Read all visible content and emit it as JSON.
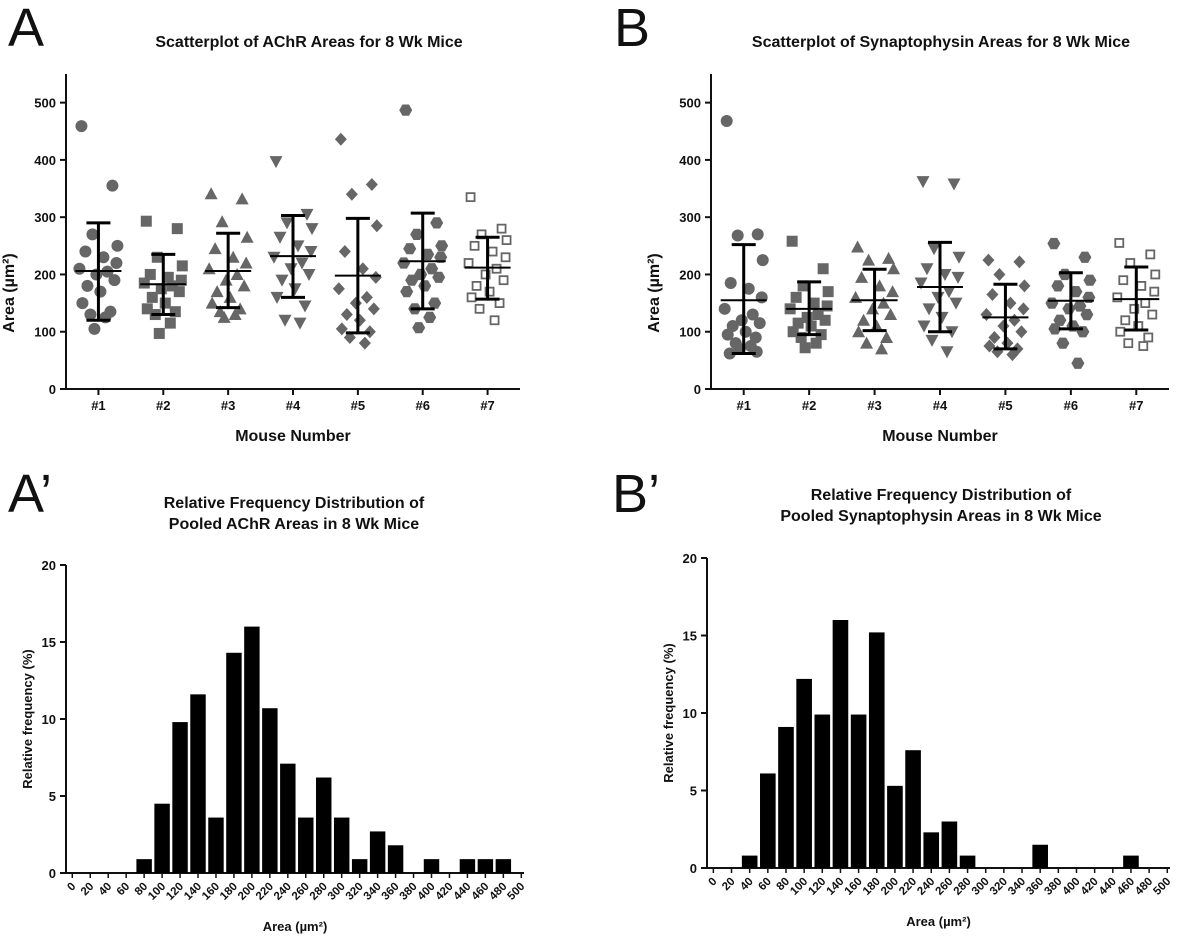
{
  "chart_data": [
    {
      "panel": "A",
      "type": "scatter",
      "title": "Scatterplot of AChR Areas for 8 Wk Mice",
      "xlabel": "Mouse Number",
      "ylabel": "Area (µm²)",
      "ylim": [
        0,
        550
      ],
      "yticks": [
        0,
        100,
        200,
        300,
        400,
        500
      ],
      "categories": [
        "#1",
        "#2",
        "#3",
        "#4",
        "#5",
        "#6",
        "#7"
      ],
      "series": [
        {
          "name": "#1",
          "marker": "circle",
          "mean": 206,
          "sd_low": 120,
          "sd_high": 290,
          "values": [
            459,
            355,
            270,
            250,
            240,
            230,
            220,
            210,
            205,
            200,
            190,
            180,
            170,
            150,
            135,
            130,
            125,
            105
          ]
        },
        {
          "name": "#2",
          "marker": "square",
          "mean": 183,
          "sd_low": 130,
          "sd_high": 235,
          "values": [
            293,
            280,
            230,
            215,
            200,
            195,
            190,
            185,
            180,
            175,
            170,
            160,
            150,
            140,
            135,
            130,
            115,
            97
          ]
        },
        {
          "name": "#3",
          "marker": "triangle-up",
          "mean": 206,
          "sd_low": 142,
          "sd_high": 272,
          "values": [
            341,
            332,
            292,
            265,
            245,
            230,
            220,
            210,
            200,
            190,
            180,
            170,
            160,
            150,
            140,
            135,
            130,
            125
          ]
        },
        {
          "name": "#4",
          "marker": "triangle-down",
          "mean": 232,
          "sd_low": 160,
          "sd_high": 303,
          "values": [
            397,
            305,
            290,
            280,
            265,
            250,
            240,
            230,
            220,
            210,
            200,
            190,
            175,
            160,
            145,
            120,
            115
          ]
        },
        {
          "name": "#5",
          "marker": "diamond",
          "mean": 198,
          "sd_low": 98,
          "sd_high": 298,
          "values": [
            436,
            357,
            340,
            285,
            240,
            210,
            195,
            175,
            160,
            150,
            140,
            130,
            120,
            105,
            100,
            90,
            80
          ]
        },
        {
          "name": "#6",
          "marker": "hexagon",
          "mean": 223,
          "sd_low": 140,
          "sd_high": 307,
          "values": [
            487,
            290,
            270,
            250,
            245,
            235,
            230,
            220,
            210,
            200,
            195,
            190,
            180,
            170,
            150,
            140,
            125,
            107
          ]
        },
        {
          "name": "#7",
          "marker": "open-square",
          "mean": 212,
          "sd_low": 157,
          "sd_high": 265,
          "values": [
            335,
            280,
            270,
            260,
            250,
            240,
            230,
            220,
            210,
            200,
            190,
            180,
            170,
            160,
            150,
            140,
            120
          ]
        }
      ]
    },
    {
      "panel": "B",
      "type": "scatter",
      "title": "Scatterplot of Synaptophysin Areas for 8 Wk Mice",
      "xlabel": "Mouse Number",
      "ylabel": "Area (µm²)",
      "ylim": [
        0,
        550
      ],
      "yticks": [
        0,
        100,
        200,
        300,
        400,
        500
      ],
      "categories": [
        "#1",
        "#2",
        "#3",
        "#4",
        "#5",
        "#6",
        "#7"
      ],
      "series": [
        {
          "name": "#1",
          "marker": "circle",
          "mean": 155,
          "sd_low": 62,
          "sd_high": 252,
          "values": [
            468,
            270,
            268,
            225,
            185,
            175,
            160,
            140,
            130,
            120,
            115,
            110,
            100,
            95,
            90,
            80,
            75,
            70,
            65,
            62
          ]
        },
        {
          "name": "#2",
          "marker": "square",
          "mean": 140,
          "sd_low": 95,
          "sd_high": 187,
          "values": [
            258,
            210,
            180,
            170,
            160,
            150,
            145,
            140,
            130,
            125,
            120,
            115,
            110,
            100,
            95,
            90,
            80,
            72
          ]
        },
        {
          "name": "#3",
          "marker": "triangle-up",
          "mean": 155,
          "sd_low": 102,
          "sd_high": 209,
          "values": [
            248,
            228,
            225,
            210,
            195,
            180,
            170,
            160,
            150,
            140,
            130,
            120,
            110,
            100,
            90,
            80,
            70
          ]
        },
        {
          "name": "#4",
          "marker": "triangle-down",
          "mean": 178,
          "sd_low": 100,
          "sd_high": 256,
          "values": [
            362,
            358,
            245,
            230,
            210,
            200,
            195,
            185,
            170,
            160,
            150,
            140,
            125,
            110,
            100,
            85,
            65
          ]
        },
        {
          "name": "#5",
          "marker": "diamond",
          "mean": 125,
          "sd_low": 70,
          "sd_high": 183,
          "values": [
            225,
            222,
            200,
            180,
            165,
            150,
            140,
            130,
            120,
            110,
            100,
            90,
            80,
            75,
            70,
            65,
            60
          ]
        },
        {
          "name": "#6",
          "marker": "hexagon",
          "mean": 154,
          "sd_low": 105,
          "sd_high": 203,
          "values": [
            254,
            230,
            200,
            190,
            180,
            170,
            160,
            150,
            145,
            140,
            130,
            120,
            110,
            105,
            100,
            80,
            45
          ]
        },
        {
          "name": "#7",
          "marker": "open-square",
          "mean": 157,
          "sd_low": 103,
          "sd_high": 213,
          "values": [
            255,
            235,
            220,
            200,
            190,
            180,
            170,
            160,
            150,
            140,
            130,
            120,
            110,
            100,
            90,
            80,
            75
          ]
        }
      ]
    },
    {
      "panel": "A’",
      "type": "bar",
      "title": [
        "Relative Frequency Distribution of",
        "Pooled AChR Areas in 8 Wk Mice"
      ],
      "xlabel": "Area (µm²)",
      "ylabel": "Relative frequency (%)",
      "ylim": [
        0,
        20
      ],
      "yticks": [
        0,
        5,
        10,
        15,
        20
      ],
      "categories": [
        "0",
        "20",
        "40",
        "60",
        "80",
        "100",
        "120",
        "140",
        "160",
        "180",
        "200",
        "220",
        "240",
        "260",
        "280",
        "300",
        "320",
        "340",
        "360",
        "380",
        "400",
        "420",
        "440",
        "460",
        "480",
        "500"
      ],
      "values": [
        0,
        0,
        0,
        0,
        0.9,
        4.5,
        9.8,
        11.6,
        3.6,
        14.3,
        16.0,
        10.7,
        7.1,
        3.6,
        6.2,
        3.6,
        0.9,
        2.7,
        1.8,
        0,
        0.9,
        0,
        0.9,
        0.9,
        0.9,
        0
      ]
    },
    {
      "panel": "B’",
      "type": "bar",
      "title": [
        "Relative Frequency Distribution of",
        "Pooled Synaptophysin Areas in 8 Wk Mice"
      ],
      "xlabel": "Area (µm²)",
      "ylabel": "Relative frequency (%)",
      "ylim": [
        0,
        20
      ],
      "yticks": [
        0,
        5,
        10,
        15,
        20
      ],
      "categories": [
        "0",
        "20",
        "40",
        "60",
        "80",
        "100",
        "120",
        "140",
        "160",
        "180",
        "200",
        "220",
        "240",
        "260",
        "280",
        "300",
        "320",
        "340",
        "360",
        "380",
        "400",
        "420",
        "440",
        "460",
        "480",
        "500"
      ],
      "values": [
        0,
        0,
        0.8,
        6.1,
        9.1,
        12.2,
        9.9,
        16.0,
        9.9,
        15.2,
        5.3,
        7.6,
        2.3,
        3.0,
        0.8,
        0,
        0,
        0,
        1.5,
        0,
        0,
        0,
        0,
        0.8,
        0,
        0
      ]
    }
  ]
}
